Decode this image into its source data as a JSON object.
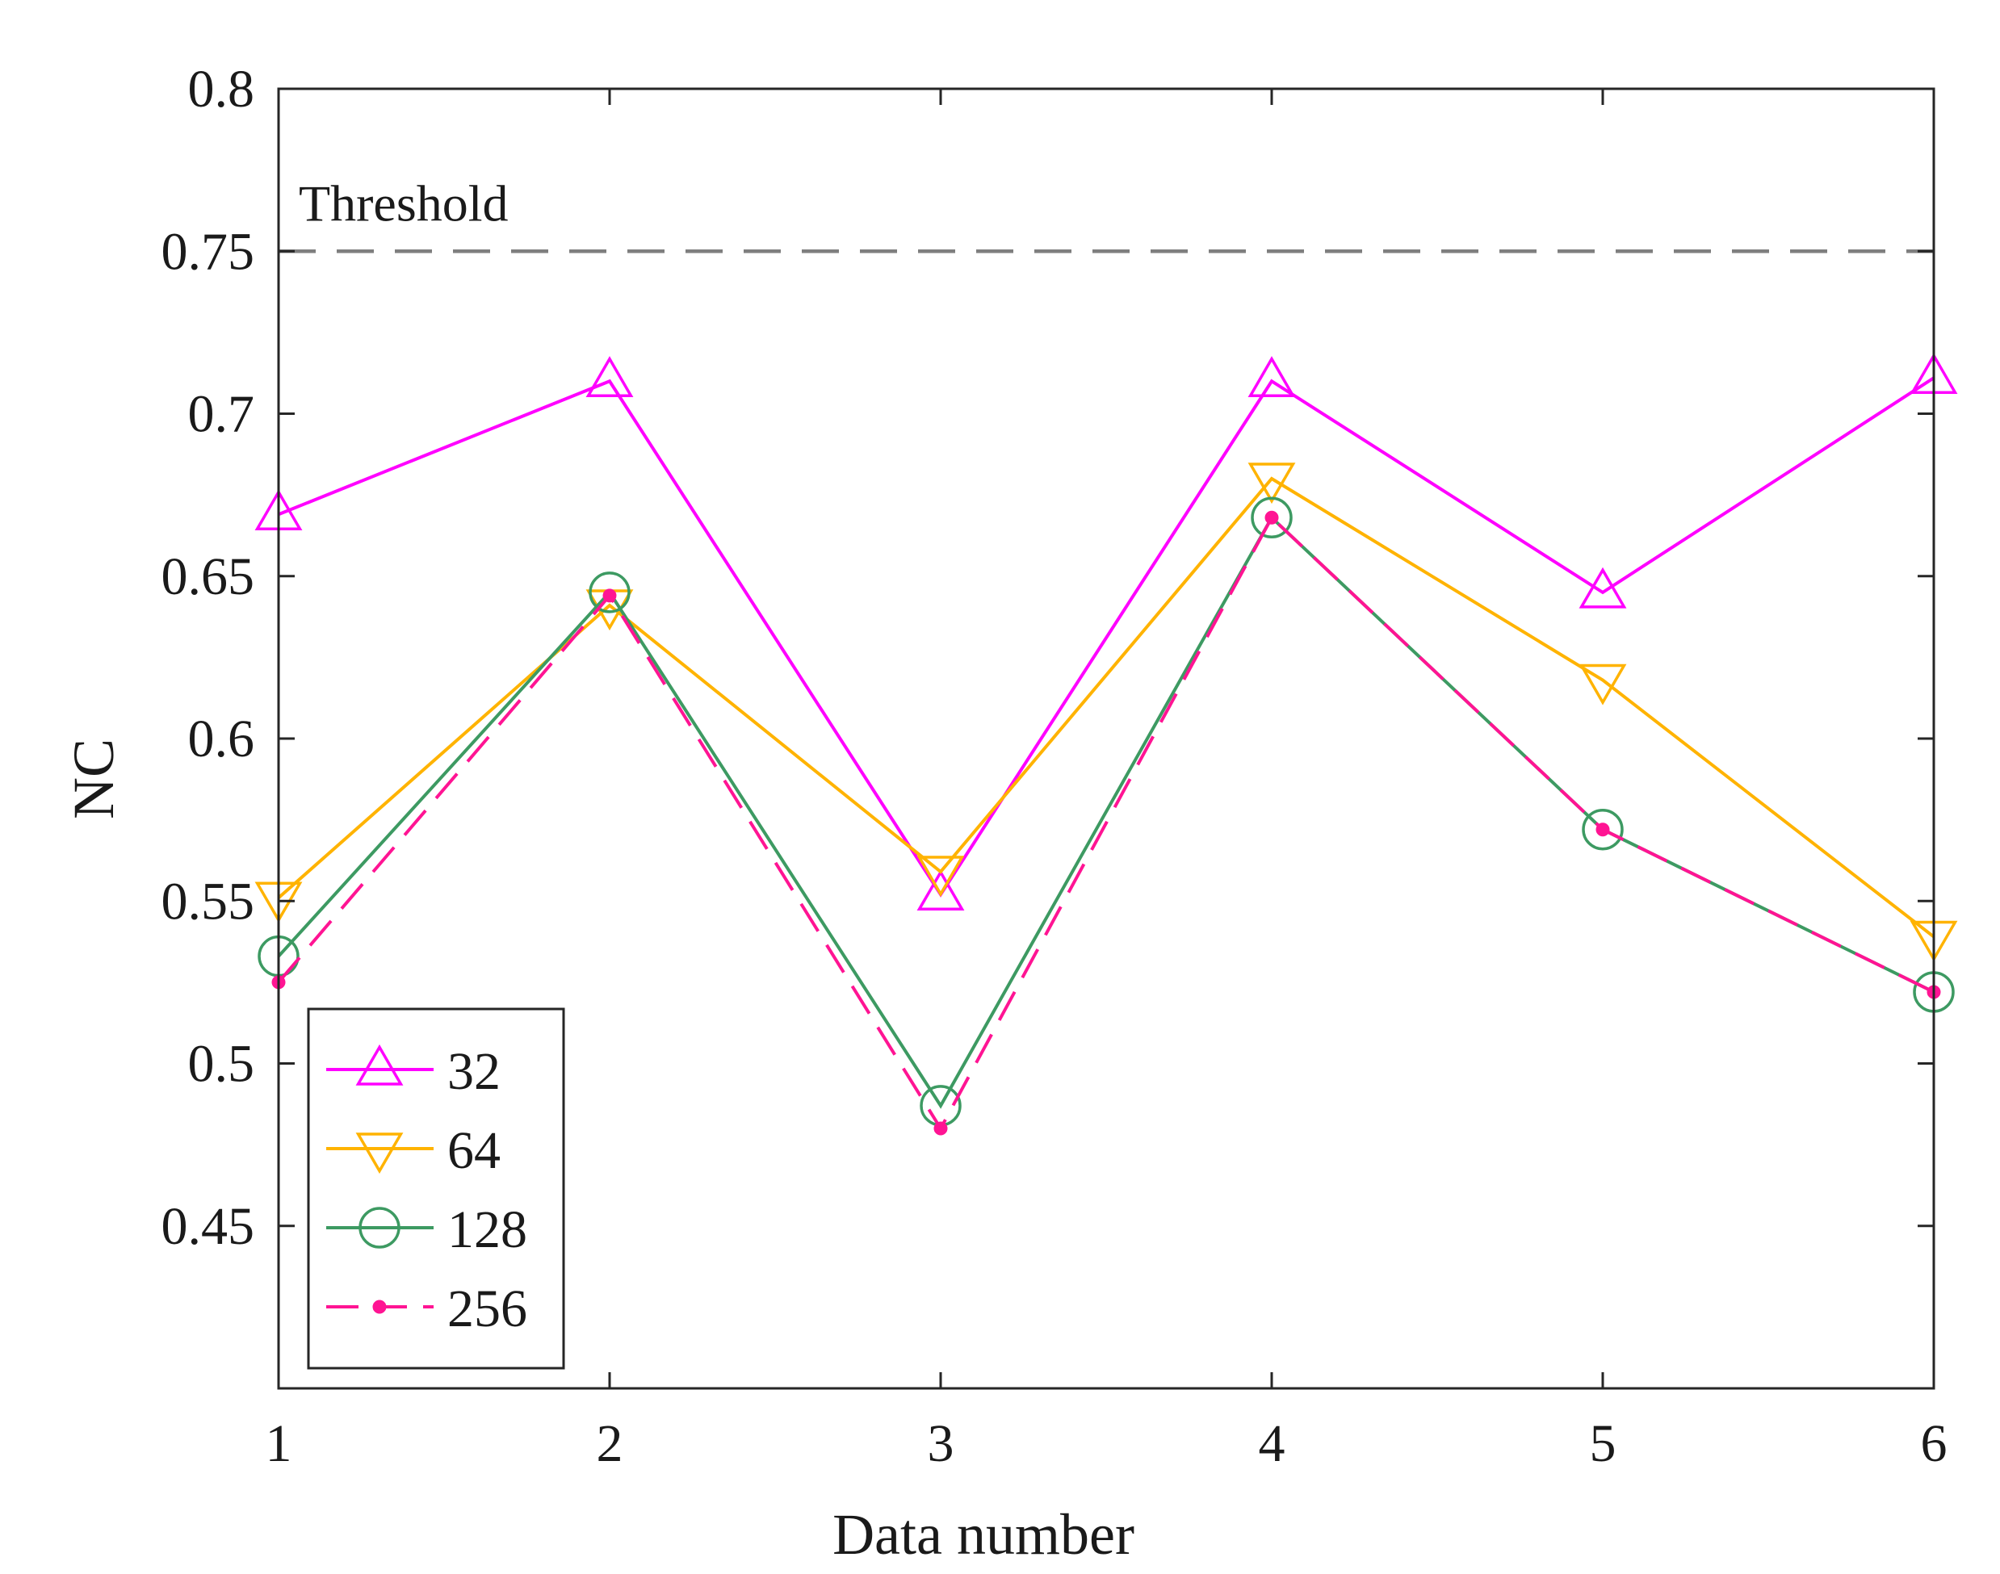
{
  "chart_data": {
    "type": "line",
    "title": "",
    "xlabel": "Data number",
    "ylabel": "NC",
    "x": [
      1,
      2,
      3,
      4,
      5,
      6
    ],
    "xlim": [
      1,
      6
    ],
    "ylim": [
      0.4,
      0.8
    ],
    "xticks": [
      "1",
      "2",
      "3",
      "4",
      "5",
      "6"
    ],
    "yticks": [
      "0.45",
      "0.5",
      "0.55",
      "0.6",
      "0.65",
      "0.7",
      "0.75",
      "0.8"
    ],
    "grid": false,
    "legend_position": "bottom-left",
    "threshold": {
      "label": "Threshold",
      "value": 0.75,
      "color": "#7f7f7f"
    },
    "series": [
      {
        "name": "32",
        "color": "#ff00ff",
        "marker": "triangle-up",
        "dash": false,
        "values": [
          0.669,
          0.71,
          0.552,
          0.71,
          0.645,
          0.711
        ]
      },
      {
        "name": "64",
        "color": "#ffb300",
        "marker": "triangle-down",
        "dash": false,
        "values": [
          0.551,
          0.641,
          0.559,
          0.68,
          0.618,
          0.539
        ]
      },
      {
        "name": "128",
        "color": "#3d9a62",
        "marker": "circle",
        "dash": false,
        "values": [
          0.533,
          0.645,
          0.487,
          0.668,
          0.572,
          0.522
        ]
      },
      {
        "name": "256",
        "color": "#ff1493",
        "marker": "dot",
        "dash": true,
        "values": [
          0.525,
          0.644,
          0.48,
          0.668,
          0.572,
          0.522
        ]
      }
    ]
  }
}
